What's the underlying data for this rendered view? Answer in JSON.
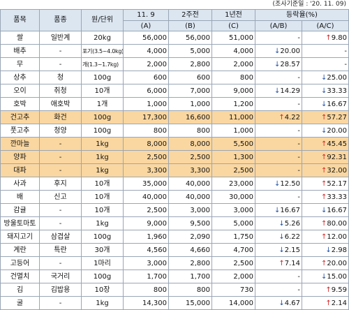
{
  "note": "(조사기준일 : '20. 11. 09)",
  "colors": {
    "header_bg": "#dce6f1",
    "highlight_bg": "#fad7a0",
    "up": "#d62020",
    "down": "#1f4fa8"
  },
  "headers": {
    "item": "품목",
    "variety": "품종",
    "unit": "원/단위",
    "col_a_top": "11. 9",
    "col_a_bottom": "(A)",
    "col_b_top": "2주전",
    "col_b_bottom": "(B)",
    "col_c_top": "1년전",
    "col_c_bottom": "(C)",
    "rate": "등락율(%)",
    "rate_ab": "(A/B)",
    "rate_ac": "(A/C)"
  },
  "rows": [
    {
      "item": "쌀",
      "variety": "일반계",
      "unit": "20kg",
      "a": "56,000",
      "b": "56,000",
      "c": "51,000",
      "ab_dir": "",
      "ab": "-",
      "ac_dir": "up",
      "ac": "9.80",
      "hl": false
    },
    {
      "item": "배추",
      "variety": "-",
      "unit": "포기(3.5~4.0kg)",
      "a": "4,000",
      "b": "5,000",
      "c": "4,000",
      "ab_dir": "down",
      "ab": "20.00",
      "ac_dir": "",
      "ac": "-",
      "hl": false
    },
    {
      "item": "무",
      "variety": "-",
      "unit": "개(1.3~1.7kg)",
      "a": "2,000",
      "b": "2,800",
      "c": "2,000",
      "ab_dir": "down",
      "ab": "28.57",
      "ac_dir": "",
      "ac": "-",
      "hl": false
    },
    {
      "item": "상추",
      "variety": "청",
      "unit": "100g",
      "a": "600",
      "b": "600",
      "c": "800",
      "ab_dir": "",
      "ab": "-",
      "ac_dir": "down",
      "ac": "25.00",
      "hl": false
    },
    {
      "item": "오이",
      "variety": "취청",
      "unit": "10개",
      "a": "6,000",
      "b": "7,000",
      "c": "9,000",
      "ab_dir": "down",
      "ab": "14.29",
      "ac_dir": "down",
      "ac": "33.33",
      "hl": false
    },
    {
      "item": "호박",
      "variety": "애호박",
      "unit": "1개",
      "a": "1,000",
      "b": "1,000",
      "c": "1,200",
      "ab_dir": "",
      "ab": "-",
      "ac_dir": "down",
      "ac": "16.67",
      "hl": false
    },
    {
      "item": "건고추",
      "variety": "화건",
      "unit": "100g",
      "a": "17,300",
      "b": "16,600",
      "c": "11,000",
      "ab_dir": "up",
      "ab": "4.22",
      "ac_dir": "up",
      "ac": "57.27",
      "hl": true
    },
    {
      "item": "풋고추",
      "variety": "청양",
      "unit": "100g",
      "a": "800",
      "b": "800",
      "c": "1,000",
      "ab_dir": "",
      "ab": "-",
      "ac_dir": "down",
      "ac": "20.00",
      "hl": false
    },
    {
      "item": "깐마늘",
      "variety": "-",
      "unit": "1kg",
      "a": "8,000",
      "b": "8,000",
      "c": "5,500",
      "ab_dir": "",
      "ab": "-",
      "ac_dir": "up",
      "ac": "45.45",
      "hl": true
    },
    {
      "item": "양파",
      "variety": "-",
      "unit": "1kg",
      "a": "2,500",
      "b": "2,500",
      "c": "1,300",
      "ab_dir": "",
      "ab": "-",
      "ac_dir": "up",
      "ac": "92.31",
      "hl": true
    },
    {
      "item": "대파",
      "variety": "-",
      "unit": "1kg",
      "a": "3,300",
      "b": "3,300",
      "c": "2,500",
      "ab_dir": "",
      "ab": "-",
      "ac_dir": "up",
      "ac": "32.00",
      "hl": true
    },
    {
      "item": "사과",
      "variety": "후지",
      "unit": "10개",
      "a": "35,000",
      "b": "40,000",
      "c": "23,000",
      "ab_dir": "down",
      "ab": "12.50",
      "ac_dir": "up",
      "ac": "52.17",
      "hl": false
    },
    {
      "item": "배",
      "variety": "신고",
      "unit": "10개",
      "a": "40,000",
      "b": "40,000",
      "c": "30,000",
      "ab_dir": "",
      "ab": "-",
      "ac_dir": "up",
      "ac": "33.33",
      "hl": false
    },
    {
      "item": "감귤",
      "variety": "-",
      "unit": "10개",
      "a": "2,500",
      "b": "3,000",
      "c": "3,000",
      "ab_dir": "down",
      "ab": "16.67",
      "ac_dir": "down",
      "ac": "16.67",
      "hl": false
    },
    {
      "item": "방울토마토",
      "variety": "-",
      "unit": "1kg",
      "a": "9,000",
      "b": "9,500",
      "c": "5,000",
      "ab_dir": "down",
      "ab": "5.26",
      "ac_dir": "up",
      "ac": "80.00",
      "hl": false
    },
    {
      "item": "돼지고기",
      "variety": "삼겹살",
      "unit": "100g",
      "a": "1,960",
      "b": "2,090",
      "c": "1,750",
      "ab_dir": "down",
      "ab": "6.22",
      "ac_dir": "up",
      "ac": "12.00",
      "hl": false
    },
    {
      "item": "계란",
      "variety": "특란",
      "unit": "30개",
      "a": "4,560",
      "b": "4,660",
      "c": "4,700",
      "ab_dir": "down",
      "ab": "2.15",
      "ac_dir": "down",
      "ac": "2.98",
      "hl": false
    },
    {
      "item": "고등어",
      "variety": "-",
      "unit": "1마리",
      "a": "3,000",
      "b": "2,800",
      "c": "2,500",
      "ab_dir": "up",
      "ab": "7.14",
      "ac_dir": "up",
      "ac": "20.00",
      "hl": false
    },
    {
      "item": "건멸치",
      "variety": "국거리",
      "unit": "100g",
      "a": "1,700",
      "b": "1,700",
      "c": "2,000",
      "ab_dir": "",
      "ab": "-",
      "ac_dir": "down",
      "ac": "15.00",
      "hl": false
    },
    {
      "item": "김",
      "variety": "김밥용",
      "unit": "10장",
      "a": "800",
      "b": "800",
      "c": "730",
      "ab_dir": "",
      "ab": "-",
      "ac_dir": "up",
      "ac": "9.59",
      "hl": false
    },
    {
      "item": "굴",
      "variety": "-",
      "unit": "1kg",
      "a": "14,300",
      "b": "15,000",
      "c": "14,000",
      "ab_dir": "down",
      "ab": "4.67",
      "ac_dir": "up",
      "ac": "2.14",
      "hl": false
    }
  ]
}
